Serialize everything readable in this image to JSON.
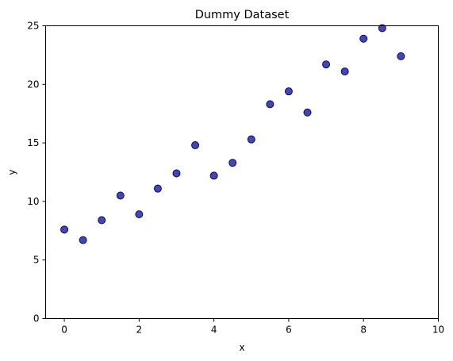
{
  "chart_data": {
    "type": "scatter",
    "title": "Dummy Dataset",
    "xlabel": "x",
    "ylabel": "y",
    "xlim": [
      -0.5,
      10
    ],
    "ylim": [
      0,
      25
    ],
    "xticks": [
      0,
      2,
      4,
      6,
      8,
      10
    ],
    "yticks": [
      0,
      5,
      10,
      15,
      20,
      25
    ],
    "grid": false,
    "marker_color": "#191991",
    "marker_edge_color": "#0a0a6e",
    "series": [
      {
        "x": [
          0,
          0.5,
          1,
          1.5,
          2,
          2.5,
          3,
          3.5,
          4,
          4.5,
          5,
          5.5,
          6,
          6.5,
          7,
          7.5,
          8,
          8.5,
          9
        ],
        "y": [
          7.6,
          6.7,
          8.4,
          10.5,
          8.9,
          11.1,
          12.4,
          14.8,
          12.2,
          13.3,
          15.3,
          18.3,
          19.4,
          17.6,
          21.7,
          21.1,
          23.9,
          24.8,
          22.4
        ]
      }
    ]
  }
}
